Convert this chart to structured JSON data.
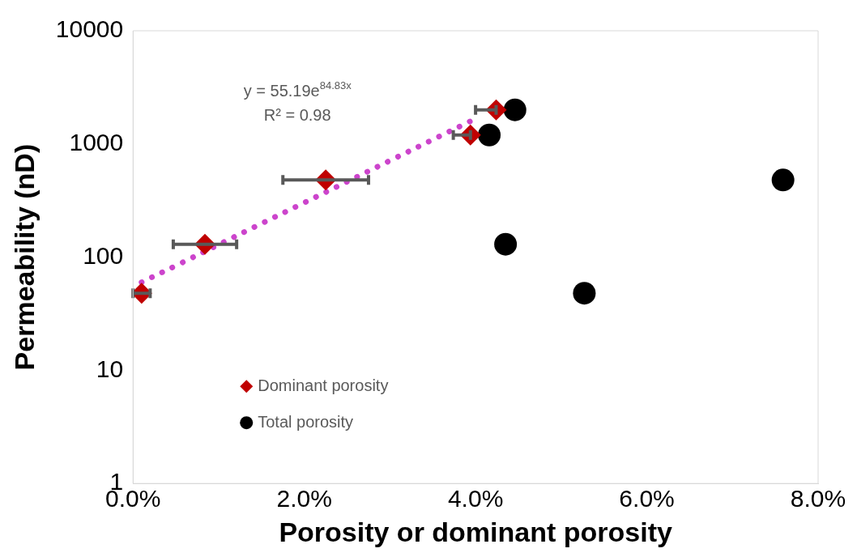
{
  "chart_data": {
    "type": "scatter",
    "xlabel": "Porosity or dominant porosity",
    "ylabel": "Permeability (nD)",
    "xlim": [
      0,
      8
    ],
    "xticks": [
      {
        "value": 0,
        "label": "0.0%"
      },
      {
        "value": 2,
        "label": "2.0%"
      },
      {
        "value": 4,
        "label": "4.0%"
      },
      {
        "value": 6,
        "label": "6.0%"
      },
      {
        "value": 8,
        "label": "8.0%"
      }
    ],
    "ylim": [
      1,
      10000
    ],
    "yticks": [
      1,
      10,
      100,
      1000,
      10000
    ],
    "log": "y",
    "grid": false,
    "legend": "bottom left",
    "series": [
      {
        "name": "Dominant porosity",
        "color": "#c00000",
        "marker": "diamond",
        "x": [
          0.1,
          0.84,
          2.25,
          3.94,
          4.24
        ],
        "values": [
          48,
          130,
          480,
          1200,
          2000
        ],
        "xerrors": [
          0.1,
          0.37,
          0.5,
          [
            3.74,
            3.94
          ],
          [
            4.0,
            4.24
          ]
        ]
      },
      {
        "name": "Total porosity",
        "color": "#000000",
        "marker": "circle",
        "x": [
          4.46,
          4.16,
          7.59,
          4.35,
          5.27
        ],
        "values": [
          2000,
          1200,
          480,
          130,
          48
        ]
      },
      {
        "type": "line",
        "color": "#cc44cc",
        "line_style": "dotted",
        "x": [
          0.1,
          0.5,
          1,
          1.5,
          2,
          2.5,
          3,
          3.5,
          4
        ],
        "values": [
          60,
          84,
          129,
          198,
          303,
          464,
          712,
          1091,
          1673
        ]
      }
    ],
    "annotations": [
      "y = 55.19e$^{84.83x}$",
      "R² = 0.98"
    ]
  }
}
